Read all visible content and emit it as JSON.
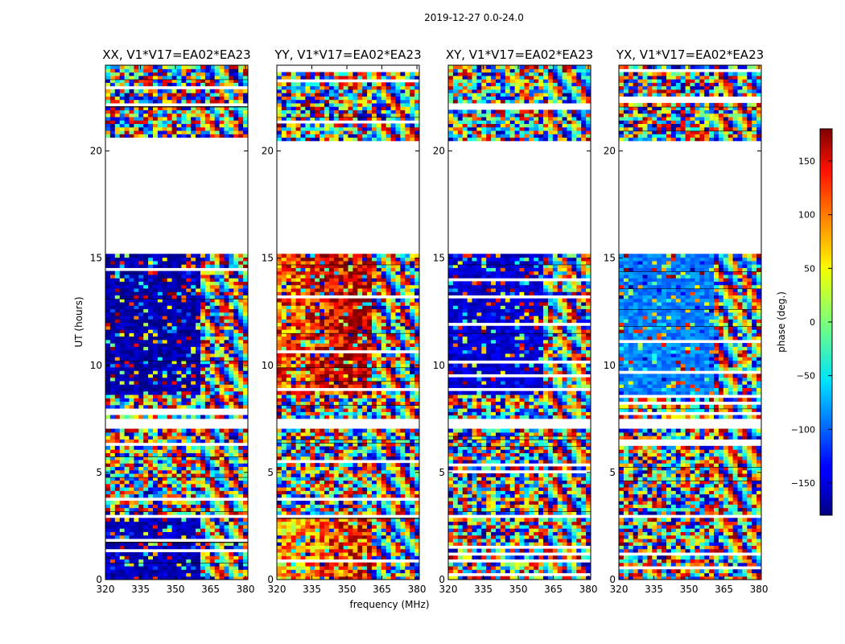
{
  "figure": {
    "suptitle": "2019-12-27 0.0-24.0",
    "shared_xlabel": "frequency (MHz)",
    "shared_ylabel": "UT (hours)",
    "colorbar_label": "phase (deg.)"
  },
  "chart_data": {
    "type": "heatmap",
    "title": "2019-12-27 0.0-24.0",
    "xlabel": "frequency (MHz)",
    "ylabel": "UT (hours)",
    "xlim": [
      320,
      381
    ],
    "ylim": [
      0,
      24
    ],
    "xticks": [
      "320",
      "335",
      "350",
      "365",
      "380"
    ],
    "yticks": [
      "0",
      "5",
      "10",
      "15",
      "20"
    ],
    "colorbar": {
      "label": "phase (deg.)",
      "range": [
        -180,
        180
      ],
      "ticks": [
        "150",
        "100",
        "50",
        "0",
        "−50",
        "−100",
        "−150"
      ],
      "tick_values": [
        150,
        100,
        50,
        0,
        -50,
        -100,
        -150
      ],
      "colormap": "jet"
    },
    "gap_hours": [
      [
        20.5,
        15.2
      ],
      [
        7.5,
        7.1
      ],
      [
        3.1,
        2.9
      ]
    ],
    "panels": [
      {
        "title": "XX, V1*V17=EA02*EA23",
        "scheme": "blue",
        "blocks": [
          {
            "t0": 0,
            "t1": 2.9,
            "f0": 320,
            "f1": 361,
            "phase": -160
          },
          {
            "t0": 8.6,
            "t1": 15.2,
            "f0": 320,
            "f1": 361,
            "phase": -165
          }
        ]
      },
      {
        "title": "YY, V1*V17=EA02*EA23",
        "scheme": "warm",
        "blocks": [
          {
            "t0": 0,
            "t1": 2.9,
            "f0": 320,
            "f1": 361,
            "phase": 60
          },
          {
            "t0": 8.6,
            "t1": 15.2,
            "f0": 320,
            "f1": 361,
            "phase": 100
          }
        ]
      },
      {
        "title": "XY, V1*V17=EA02*EA23",
        "scheme": "mixed",
        "blocks": [
          {
            "t0": 8.6,
            "t1": 15.2,
            "f0": 320,
            "f1": 361,
            "phase": -150
          }
        ]
      },
      {
        "title": "YX, V1*V17=EA02*EA23",
        "scheme": "cyan",
        "blocks": [
          {
            "t0": 8.6,
            "t1": 15.2,
            "f0": 320,
            "f1": 361,
            "phase": -90
          }
        ]
      }
    ]
  }
}
